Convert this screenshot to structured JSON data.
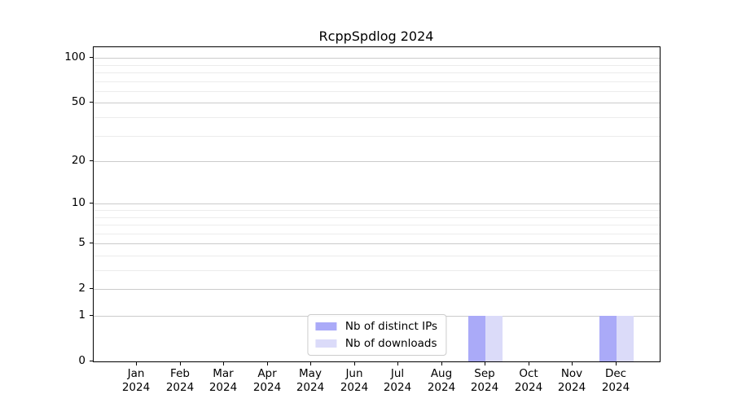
{
  "title": "RcppSpdlog 2024",
  "legend": {
    "items": [
      {
        "label": "Nb of distinct IPs",
        "color": "#aaaaf8"
      },
      {
        "label": "Nb of downloads",
        "color": "#dbdbf9"
      }
    ]
  },
  "chart_data": {
    "type": "bar",
    "title": "RcppSpdlog 2024",
    "categories": [
      "Jan 2024",
      "Feb 2024",
      "Mar 2024",
      "Apr 2024",
      "May 2024",
      "Jun 2024",
      "Jul 2024",
      "Aug 2024",
      "Sep 2024",
      "Oct 2024",
      "Nov 2024",
      "Dec 2024"
    ],
    "series": [
      {
        "name": "Nb of distinct IPs",
        "color": "#aaaaf8",
        "values": [
          0,
          0,
          0,
          0,
          0,
          0,
          0,
          0,
          1,
          0,
          0,
          1
        ]
      },
      {
        "name": "Nb of downloads",
        "color": "#dbdbf9",
        "values": [
          0,
          0,
          0,
          0,
          0,
          0,
          0,
          0,
          1,
          0,
          0,
          1
        ]
      }
    ],
    "xlabel": "",
    "ylabel": "",
    "yscale": "log1p",
    "ylim": [
      0,
      118
    ],
    "y_ticks": [
      0,
      1,
      2,
      5,
      10,
      20,
      50,
      100
    ],
    "y_minor_ticks": [
      3,
      4,
      6,
      7,
      8,
      9,
      30,
      40,
      60,
      70,
      80,
      90
    ],
    "grid": true,
    "legend_position": "inside-bottom-center",
    "colors": {
      "axis": "#000000",
      "major_grid": "#cbcbcb",
      "minor_grid": "#ececec",
      "background": "#ffffff"
    }
  }
}
